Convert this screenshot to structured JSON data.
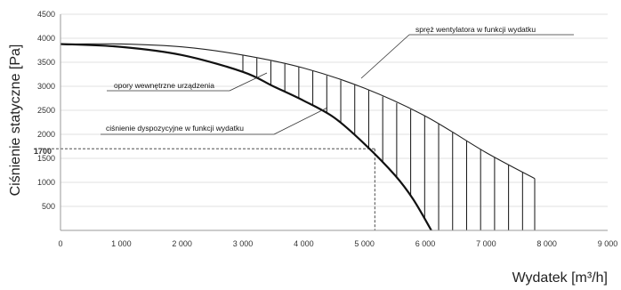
{
  "chart_data": {
    "type": "line",
    "ylabel": "Ciśnienie statyczne [Pa]",
    "xlabel": "Wydatek [m³/h]",
    "xlim": [
      0,
      9000
    ],
    "ylim": [
      0,
      4500
    ],
    "x_ticks": [
      {
        "value": 0,
        "label": "0"
      },
      {
        "value": 1000,
        "label": "1 000"
      },
      {
        "value": 2000,
        "label": "2 000"
      },
      {
        "value": 3000,
        "label": "3 000"
      },
      {
        "value": 4000,
        "label": "4 000"
      },
      {
        "value": 5000,
        "label": "5 000"
      },
      {
        "value": 6000,
        "label": "6 000"
      },
      {
        "value": 7000,
        "label": "7 000"
      },
      {
        "value": 8000,
        "label": "8 000"
      },
      {
        "value": 9000,
        "label": "9 000"
      }
    ],
    "y_ticks": [
      {
        "value": 500,
        "label": "500"
      },
      {
        "value": 1000,
        "label": "1000"
      },
      {
        "value": 1500,
        "label": "1500"
      },
      {
        "value": 2000,
        "label": "2000"
      },
      {
        "value": 2500,
        "label": "2500"
      },
      {
        "value": 3000,
        "label": "3000"
      },
      {
        "value": 3500,
        "label": "3500"
      },
      {
        "value": 4000,
        "label": "4000"
      },
      {
        "value": 4500,
        "label": "4500"
      }
    ],
    "grid": "horizontal",
    "series": [
      {
        "name": "spręż wentylatora w funkcji wydatku",
        "x": [
          0,
          1000,
          2000,
          3000,
          4000,
          5000,
          6000,
          7000,
          7800
        ],
        "y": [
          3880,
          3880,
          3820,
          3650,
          3380,
          2960,
          2380,
          1620,
          1080
        ]
      },
      {
        "name": "ciśnienie dyspozycyjne w funkcji wydatku",
        "x": [
          0,
          1000,
          2000,
          3000,
          3500,
          4000,
          4500,
          5000,
          5500,
          5800,
          6100
        ],
        "y": [
          3880,
          3820,
          3650,
          3300,
          3000,
          2700,
          2350,
          1800,
          1150,
          650,
          0
        ]
      }
    ],
    "hatch_x": [
      3000,
      3230,
      3460,
      3690,
      3920,
      4150,
      4380,
      4610,
      4840,
      5070,
      5300,
      5530,
      5760,
      5990,
      6220,
      6450,
      6680,
      6910,
      7140,
      7370,
      7600,
      7800
    ],
    "reference": {
      "y_value": 1700,
      "y_label": "1700",
      "x_value": 5170
    },
    "annotations": [
      {
        "text": "spręż wentylatora w funkcji wydatku"
      },
      {
        "text": "opory wewnętrzne urządzenia"
      },
      {
        "text": "ciśnienie dyspozycyjne w funkcji wydatku"
      }
    ]
  }
}
